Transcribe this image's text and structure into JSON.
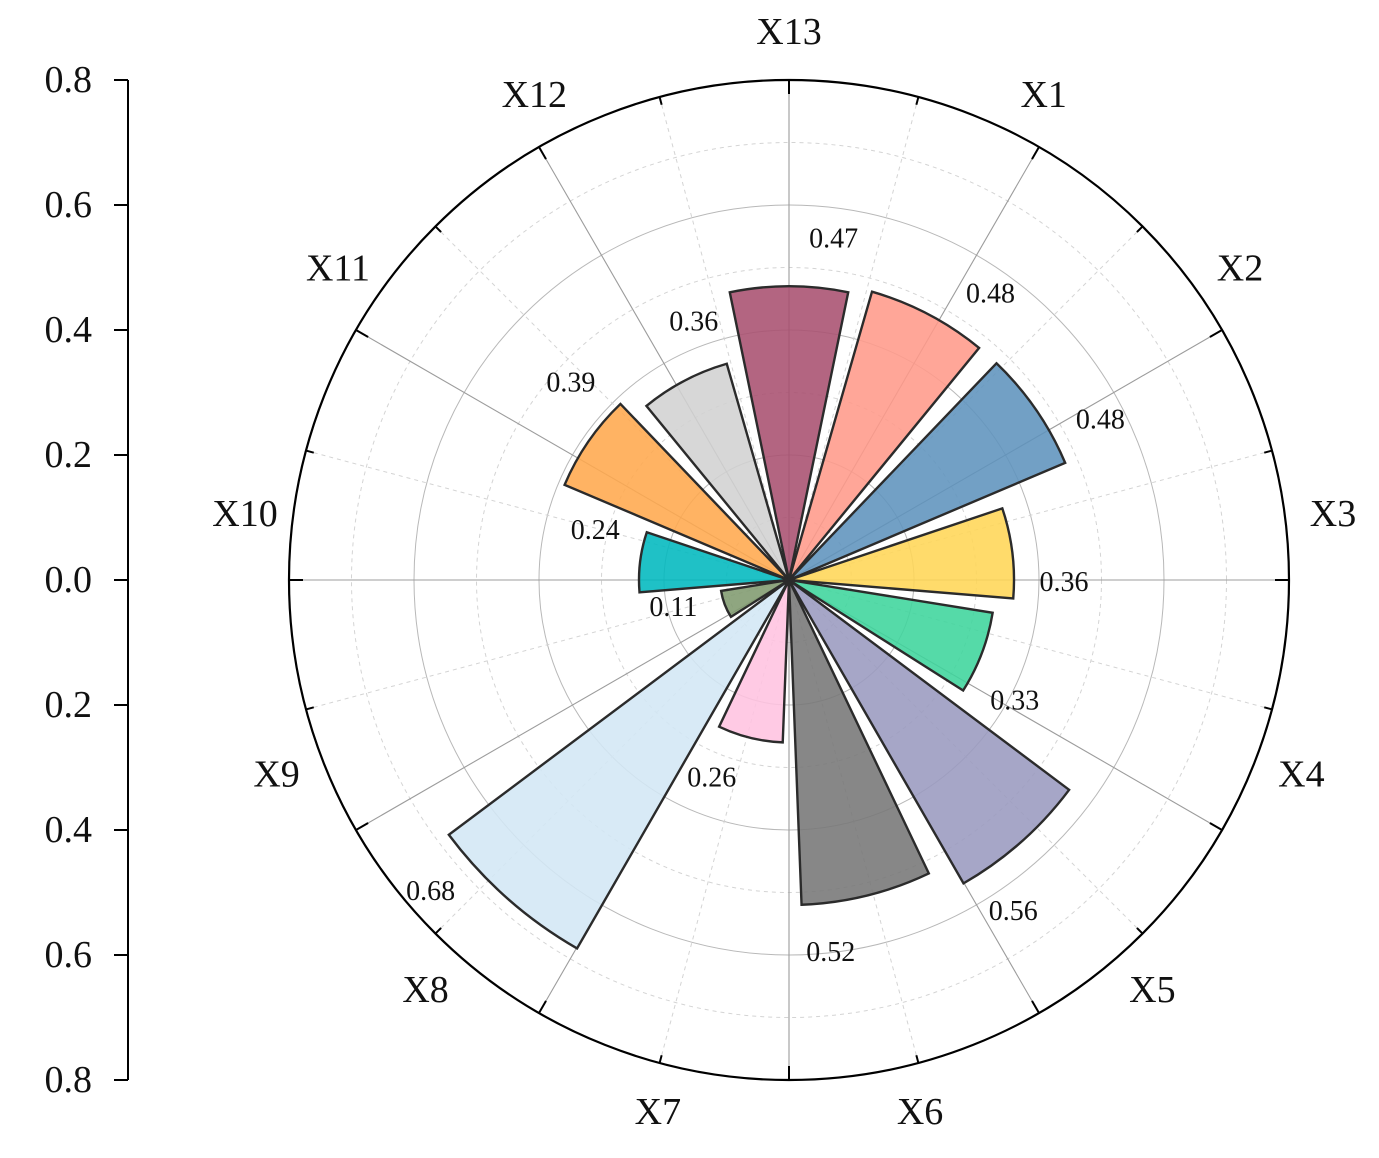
{
  "chart_data": {
    "type": "polar-bar",
    "title": "",
    "radial_axis": {
      "range": [
        0,
        0.8
      ],
      "ticks": [
        "0.8",
        "0.6",
        "0.4",
        "0.2",
        "0.0",
        "0.2",
        "0.4",
        "0.6",
        "0.8"
      ],
      "grid": true
    },
    "categories": [
      "X1",
      "X2",
      "X3",
      "X4",
      "X5",
      "X6",
      "X7",
      "X8",
      "X9",
      "X10",
      "X11",
      "X12",
      "X13"
    ],
    "values": [
      0.48,
      0.48,
      0.36,
      0.33,
      0.56,
      0.52,
      0.26,
      0.68,
      0.11,
      0.24,
      0.39,
      0.36,
      0.47
    ],
    "value_labels": [
      "0.48",
      "0.48",
      "0.36",
      "0.33",
      "0.56",
      "0.52",
      "0.26",
      "0.68",
      "0.11",
      "0.24",
      "0.39",
      "0.36",
      "0.47"
    ],
    "colors": [
      "#ff9a8a",
      "#5f93bd",
      "#ffd657",
      "#3dd59c",
      "#9a9abf",
      "#767676",
      "#ffc3e0",
      "#d3e7f5",
      "#7f9a6e",
      "#00b8be",
      "#ffa94d",
      "#d2d2d2",
      "#a9506f"
    ]
  }
}
